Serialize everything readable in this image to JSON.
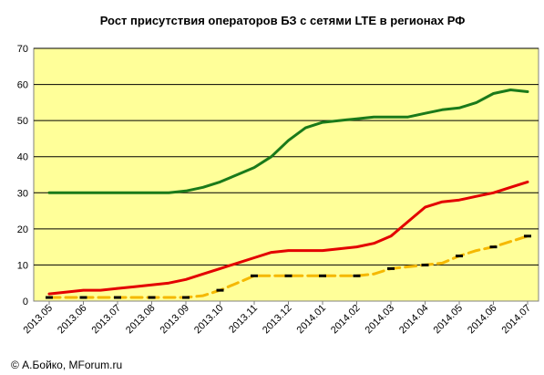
{
  "chart_data": {
    "type": "line",
    "title": "Рост присутствия операторов БЗ с сетями LTE в регионах РФ",
    "xlabel": "",
    "ylabel": "",
    "ylim": [
      0,
      70
    ],
    "yticks": [
      0,
      10,
      20,
      30,
      40,
      50,
      60,
      70
    ],
    "categories": [
      "2013.05",
      "2013.06",
      "2013.07",
      "2013.08",
      "2013.09",
      "2013.10",
      "2013.11",
      "2013.12",
      "2014.01",
      "2014.02",
      "2014.03",
      "2014.04",
      "2014.05",
      "2014.06",
      "2014.07"
    ],
    "x": [
      0,
      0.5,
      1,
      1.5,
      2,
      2.5,
      3,
      3.5,
      4,
      4.5,
      5,
      5.5,
      6,
      6.5,
      7,
      7.5,
      8,
      8.5,
      9,
      9.5,
      10,
      10.5,
      11,
      11.5,
      12,
      12.5,
      13,
      13.5,
      14
    ],
    "series": [
      {
        "color": "#1a7a1a",
        "style": "solid",
        "values": [
          30,
          30,
          30,
          30,
          30,
          30,
          30,
          30,
          30.5,
          31.5,
          33,
          35,
          37,
          40,
          44.5,
          48,
          49.5,
          50,
          50.5,
          51,
          51,
          51,
          52,
          53,
          53.5,
          55,
          57.5,
          58.5,
          58
        ]
      },
      {
        "color": "#e30000",
        "style": "solid",
        "values": [
          2,
          2.5,
          3,
          3,
          3.5,
          4,
          4.5,
          5,
          6,
          7.5,
          9,
          10.5,
          12,
          13.5,
          14,
          14,
          14,
          14.5,
          15,
          16,
          18,
          22,
          26,
          27.5,
          28,
          29,
          30,
          31.5,
          33
        ]
      },
      {
        "color": "#f5b800",
        "style": "dashed",
        "values": [
          1,
          1,
          1,
          1,
          1,
          1,
          1,
          1,
          1,
          1.5,
          3,
          5,
          7,
          7,
          7,
          7,
          7,
          7,
          7,
          7.5,
          9,
          9.5,
          10,
          10.5,
          12.5,
          14,
          15,
          16.5,
          18
        ]
      }
    ]
  },
  "colors": {
    "plot_background": "#ffff99",
    "gridline": "#000000"
  },
  "footer": {
    "copyright": "© А.Бойко, MForum.ru"
  }
}
